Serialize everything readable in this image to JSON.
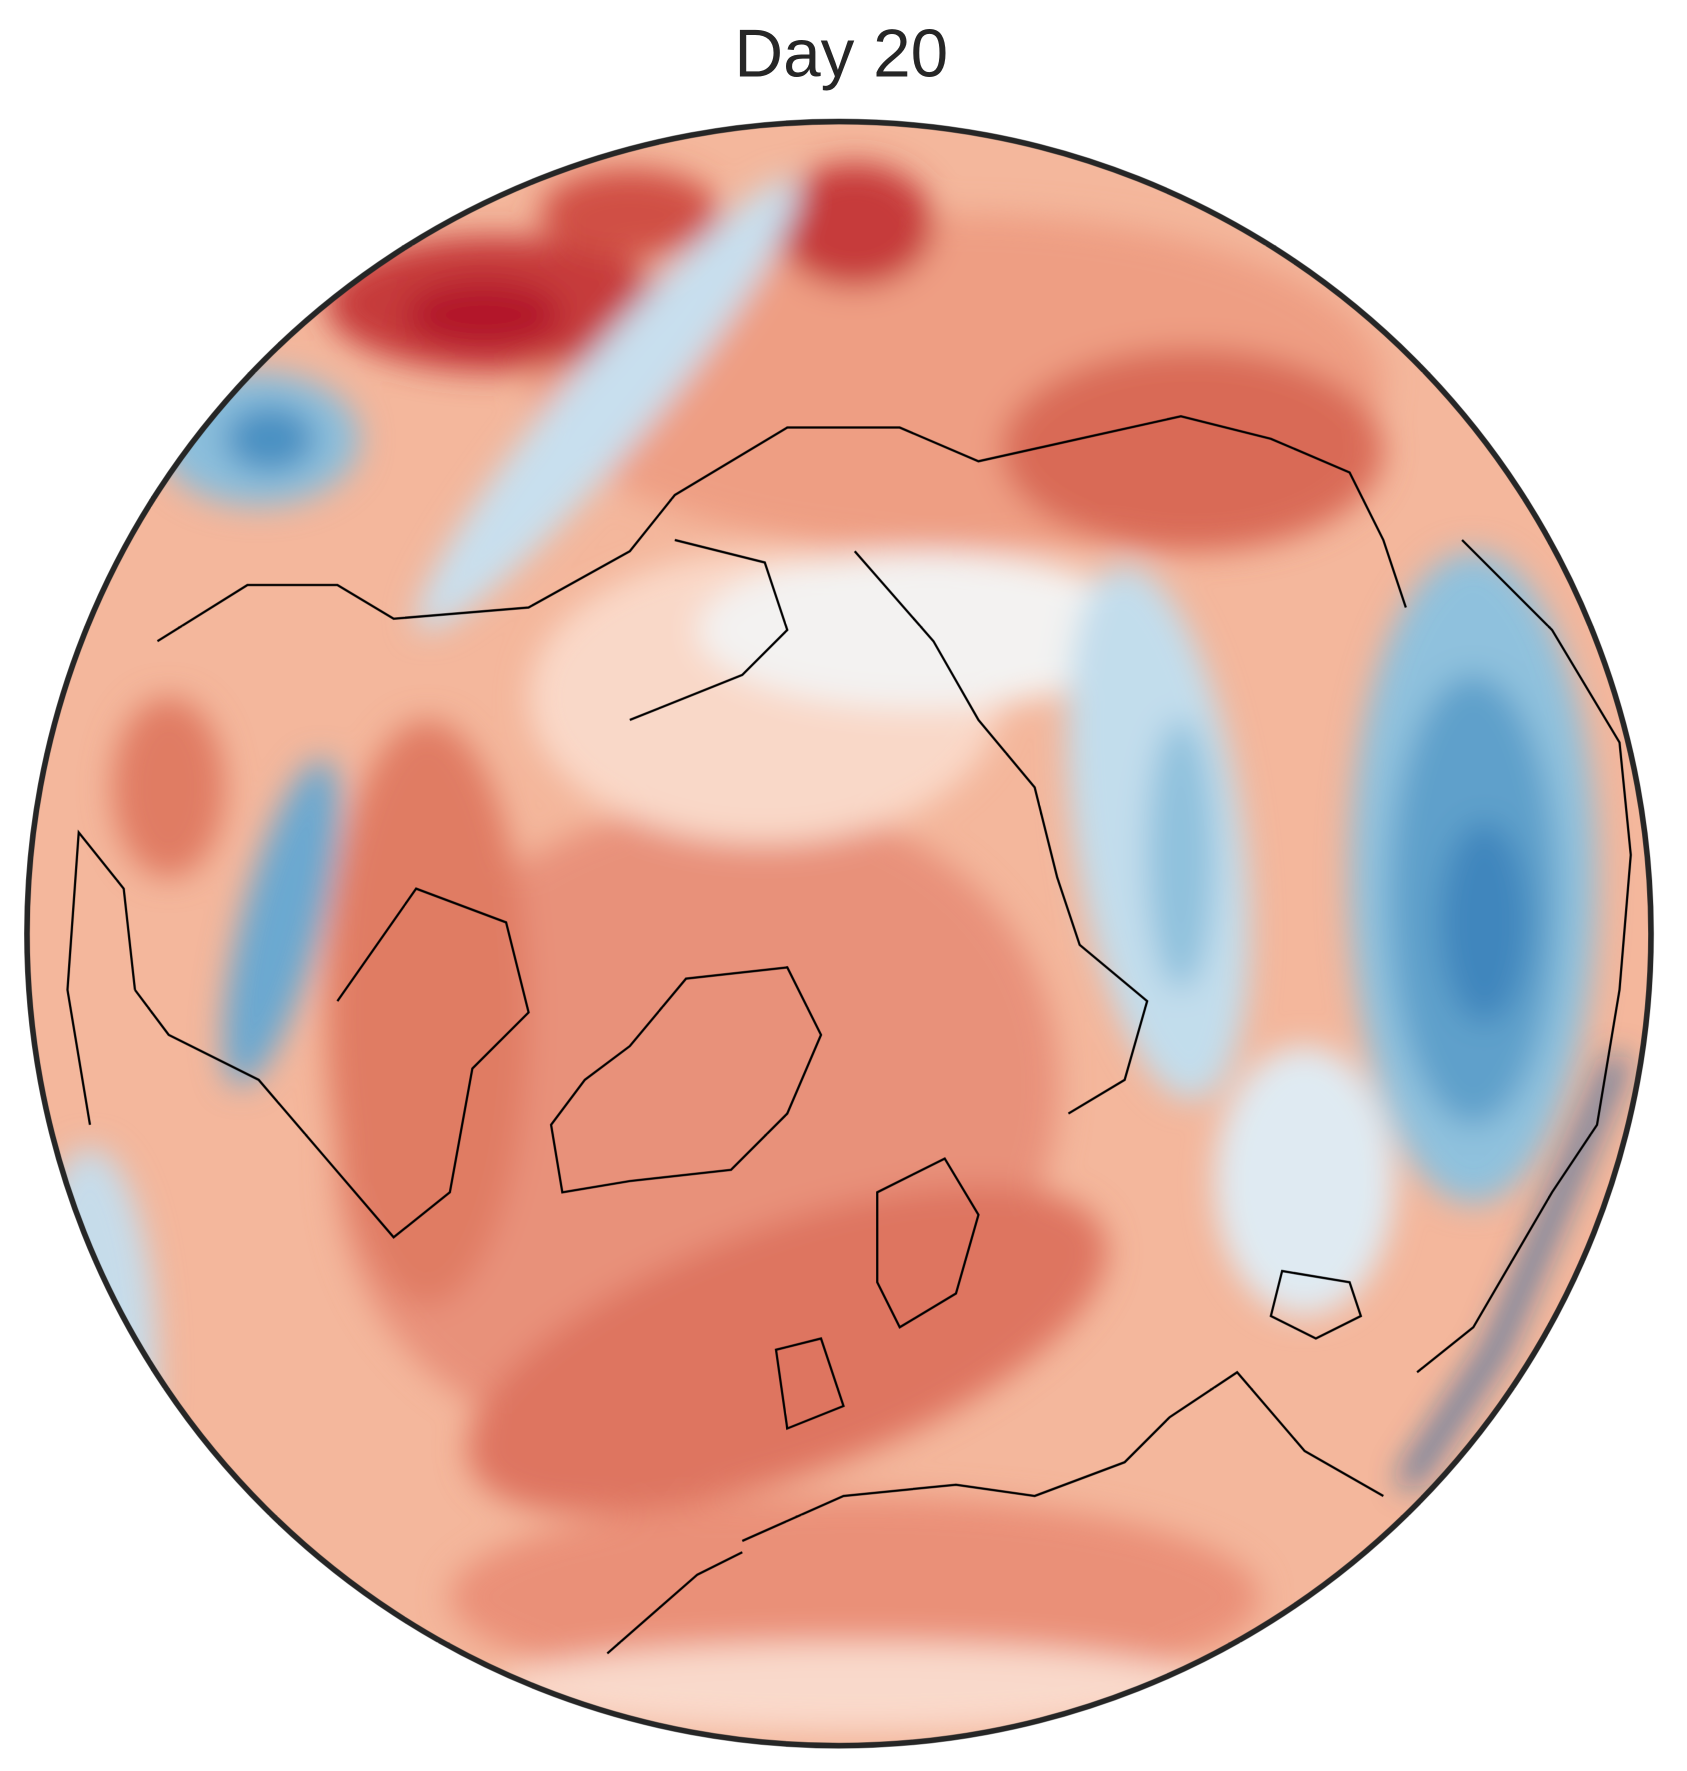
{
  "header": {
    "title": "Day 20"
  }
}
